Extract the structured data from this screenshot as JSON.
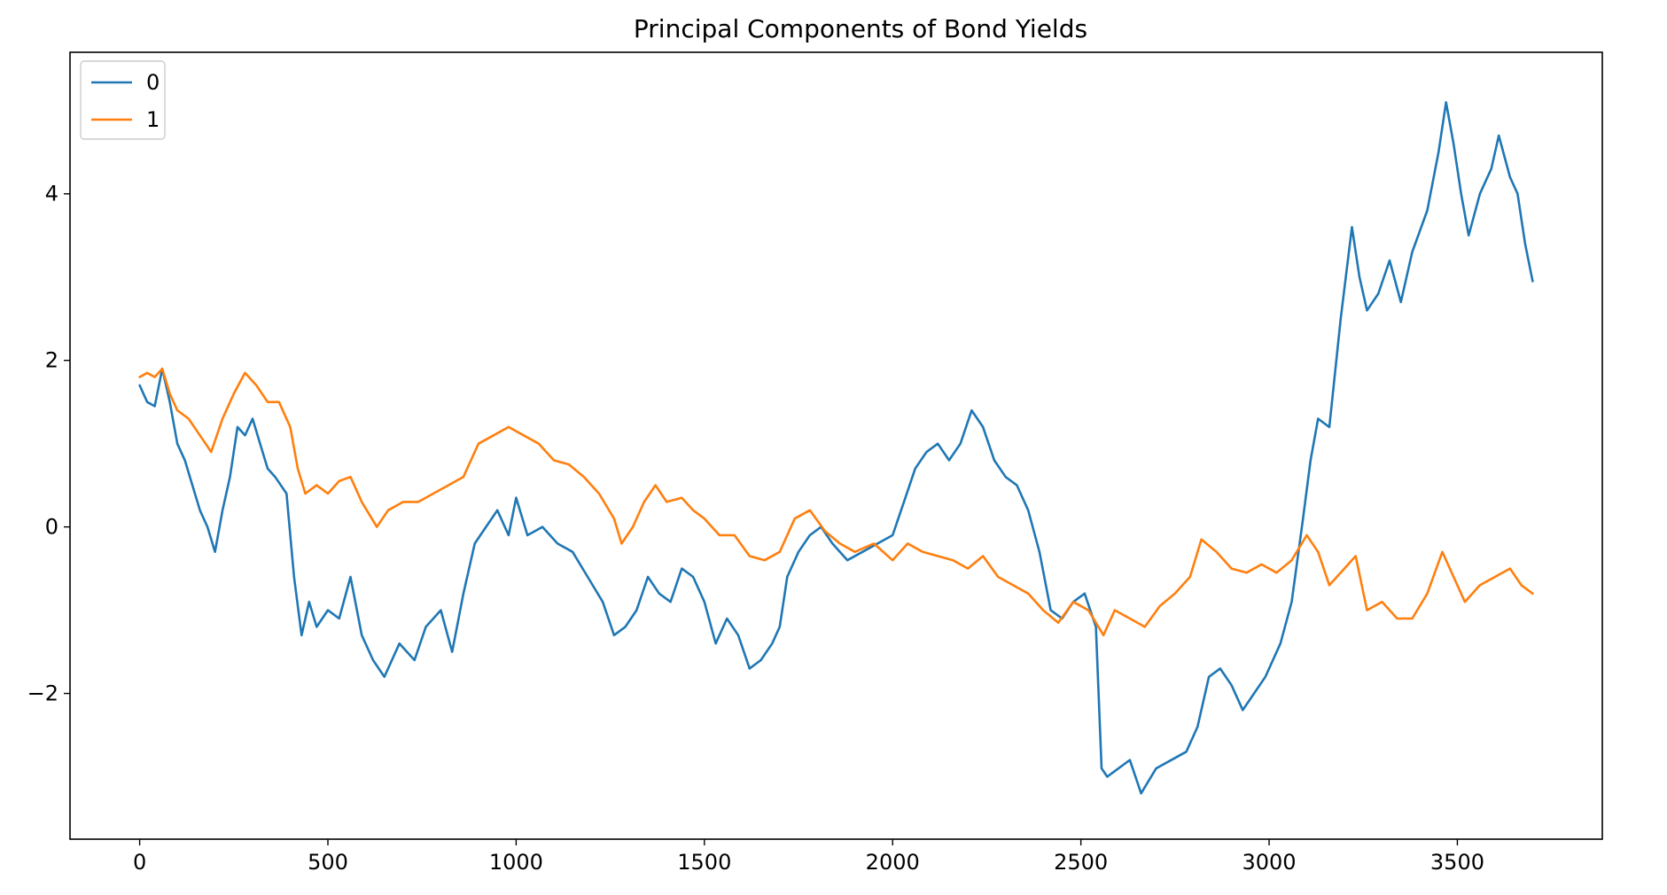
{
  "chart_data": {
    "type": "line",
    "title": "Principal Components of Bond Yields",
    "xlabel": "",
    "ylabel": "",
    "xlim": [
      -185,
      3885
    ],
    "ylim": [
      -3.75,
      5.7
    ],
    "x_ticks": [
      0,
      500,
      1000,
      1500,
      2000,
      2500,
      3000,
      3500
    ],
    "y_ticks": [
      -2,
      0,
      2,
      4
    ],
    "x_tick_labels": [
      "0",
      "500",
      "1000",
      "1500",
      "2000",
      "2500",
      "3000",
      "3500"
    ],
    "y_tick_labels": [
      "−2",
      "0",
      "2",
      "4"
    ],
    "legend": {
      "placement": "top-left",
      "entries": [
        "0",
        "1"
      ]
    },
    "grid": false,
    "series": [
      {
        "name": "0",
        "color": "#1f77b4",
        "points": [
          [
            0,
            1.7
          ],
          [
            20,
            1.5
          ],
          [
            40,
            1.45
          ],
          [
            60,
            1.9
          ],
          [
            80,
            1.5
          ],
          [
            100,
            1.0
          ],
          [
            120,
            0.8
          ],
          [
            140,
            0.5
          ],
          [
            160,
            0.2
          ],
          [
            180,
            0.0
          ],
          [
            200,
            -0.3
          ],
          [
            220,
            0.2
          ],
          [
            240,
            0.6
          ],
          [
            260,
            1.2
          ],
          [
            280,
            1.1
          ],
          [
            300,
            1.3
          ],
          [
            320,
            1.0
          ],
          [
            340,
            0.7
          ],
          [
            360,
            0.6
          ],
          [
            390,
            0.4
          ],
          [
            410,
            -0.6
          ],
          [
            430,
            -1.3
          ],
          [
            450,
            -0.9
          ],
          [
            470,
            -1.2
          ],
          [
            500,
            -1.0
          ],
          [
            530,
            -1.1
          ],
          [
            560,
            -0.6
          ],
          [
            590,
            -1.3
          ],
          [
            620,
            -1.6
          ],
          [
            650,
            -1.8
          ],
          [
            690,
            -1.4
          ],
          [
            730,
            -1.6
          ],
          [
            760,
            -1.2
          ],
          [
            800,
            -1.0
          ],
          [
            830,
            -1.5
          ],
          [
            860,
            -0.8
          ],
          [
            890,
            -0.2
          ],
          [
            920,
            0.0
          ],
          [
            950,
            0.2
          ],
          [
            980,
            -0.1
          ],
          [
            1000,
            0.35
          ],
          [
            1030,
            -0.1
          ],
          [
            1070,
            0.0
          ],
          [
            1110,
            -0.2
          ],
          [
            1150,
            -0.3
          ],
          [
            1190,
            -0.6
          ],
          [
            1230,
            -0.9
          ],
          [
            1260,
            -1.3
          ],
          [
            1290,
            -1.2
          ],
          [
            1320,
            -1.0
          ],
          [
            1350,
            -0.6
          ],
          [
            1380,
            -0.8
          ],
          [
            1410,
            -0.9
          ],
          [
            1440,
            -0.5
          ],
          [
            1470,
            -0.6
          ],
          [
            1500,
            -0.9
          ],
          [
            1530,
            -1.4
          ],
          [
            1560,
            -1.1
          ],
          [
            1590,
            -1.3
          ],
          [
            1620,
            -1.7
          ],
          [
            1650,
            -1.6
          ],
          [
            1680,
            -1.4
          ],
          [
            1700,
            -1.2
          ],
          [
            1720,
            -0.6
          ],
          [
            1750,
            -0.3
          ],
          [
            1780,
            -0.1
          ],
          [
            1810,
            0.0
          ],
          [
            1840,
            -0.2
          ],
          [
            1880,
            -0.4
          ],
          [
            1920,
            -0.3
          ],
          [
            1960,
            -0.2
          ],
          [
            2000,
            -0.1
          ],
          [
            2030,
            0.3
          ],
          [
            2060,
            0.7
          ],
          [
            2090,
            0.9
          ],
          [
            2120,
            1.0
          ],
          [
            2150,
            0.8
          ],
          [
            2180,
            1.0
          ],
          [
            2210,
            1.4
          ],
          [
            2240,
            1.2
          ],
          [
            2270,
            0.8
          ],
          [
            2300,
            0.6
          ],
          [
            2330,
            0.5
          ],
          [
            2360,
            0.2
          ],
          [
            2390,
            -0.3
          ],
          [
            2420,
            -1.0
          ],
          [
            2450,
            -1.1
          ],
          [
            2480,
            -0.9
          ],
          [
            2510,
            -0.8
          ],
          [
            2540,
            -1.2
          ],
          [
            2555,
            -2.9
          ],
          [
            2570,
            -3.0
          ],
          [
            2600,
            -2.9
          ],
          [
            2630,
            -2.8
          ],
          [
            2660,
            -3.2
          ],
          [
            2700,
            -2.9
          ],
          [
            2740,
            -2.8
          ],
          [
            2780,
            -2.7
          ],
          [
            2810,
            -2.4
          ],
          [
            2840,
            -1.8
          ],
          [
            2870,
            -1.7
          ],
          [
            2900,
            -1.9
          ],
          [
            2930,
            -2.2
          ],
          [
            2960,
            -2.0
          ],
          [
            2990,
            -1.8
          ],
          [
            3030,
            -1.4
          ],
          [
            3060,
            -0.9
          ],
          [
            3090,
            0.1
          ],
          [
            3110,
            0.8
          ],
          [
            3130,
            1.3
          ],
          [
            3160,
            1.2
          ],
          [
            3190,
            2.5
          ],
          [
            3220,
            3.6
          ],
          [
            3240,
            3.0
          ],
          [
            3260,
            2.6
          ],
          [
            3290,
            2.8
          ],
          [
            3320,
            3.2
          ],
          [
            3350,
            2.7
          ],
          [
            3380,
            3.3
          ],
          [
            3420,
            3.8
          ],
          [
            3450,
            4.5
          ],
          [
            3470,
            5.1
          ],
          [
            3490,
            4.6
          ],
          [
            3510,
            4.0
          ],
          [
            3530,
            3.5
          ],
          [
            3560,
            4.0
          ],
          [
            3590,
            4.3
          ],
          [
            3610,
            4.7
          ],
          [
            3640,
            4.2
          ],
          [
            3660,
            4.0
          ],
          [
            3680,
            3.4
          ],
          [
            3700,
            2.95
          ]
        ]
      },
      {
        "name": "1",
        "color": "#ff7f0e",
        "points": [
          [
            0,
            1.8
          ],
          [
            20,
            1.85
          ],
          [
            40,
            1.8
          ],
          [
            60,
            1.9
          ],
          [
            80,
            1.6
          ],
          [
            100,
            1.4
          ],
          [
            130,
            1.3
          ],
          [
            160,
            1.1
          ],
          [
            190,
            0.9
          ],
          [
            220,
            1.3
          ],
          [
            250,
            1.6
          ],
          [
            280,
            1.85
          ],
          [
            310,
            1.7
          ],
          [
            340,
            1.5
          ],
          [
            370,
            1.5
          ],
          [
            400,
            1.2
          ],
          [
            420,
            0.7
          ],
          [
            440,
            0.4
          ],
          [
            470,
            0.5
          ],
          [
            500,
            0.4
          ],
          [
            530,
            0.55
          ],
          [
            560,
            0.6
          ],
          [
            590,
            0.3
          ],
          [
            630,
            0.0
          ],
          [
            660,
            0.2
          ],
          [
            700,
            0.3
          ],
          [
            740,
            0.3
          ],
          [
            780,
            0.4
          ],
          [
            820,
            0.5
          ],
          [
            860,
            0.6
          ],
          [
            900,
            1.0
          ],
          [
            940,
            1.1
          ],
          [
            980,
            1.2
          ],
          [
            1020,
            1.1
          ],
          [
            1060,
            1.0
          ],
          [
            1100,
            0.8
          ],
          [
            1140,
            0.75
          ],
          [
            1180,
            0.6
          ],
          [
            1220,
            0.4
          ],
          [
            1260,
            0.1
          ],
          [
            1280,
            -0.2
          ],
          [
            1310,
            0.0
          ],
          [
            1340,
            0.3
          ],
          [
            1370,
            0.5
          ],
          [
            1400,
            0.3
          ],
          [
            1440,
            0.35
          ],
          [
            1470,
            0.2
          ],
          [
            1500,
            0.1
          ],
          [
            1540,
            -0.1
          ],
          [
            1580,
            -0.1
          ],
          [
            1620,
            -0.35
          ],
          [
            1660,
            -0.4
          ],
          [
            1700,
            -0.3
          ],
          [
            1740,
            0.1
          ],
          [
            1780,
            0.2
          ],
          [
            1820,
            -0.05
          ],
          [
            1860,
            -0.2
          ],
          [
            1900,
            -0.3
          ],
          [
            1950,
            -0.2
          ],
          [
            2000,
            -0.4
          ],
          [
            2040,
            -0.2
          ],
          [
            2080,
            -0.3
          ],
          [
            2120,
            -0.35
          ],
          [
            2160,
            -0.4
          ],
          [
            2200,
            -0.5
          ],
          [
            2240,
            -0.35
          ],
          [
            2280,
            -0.6
          ],
          [
            2320,
            -0.7
          ],
          [
            2360,
            -0.8
          ],
          [
            2400,
            -1.0
          ],
          [
            2440,
            -1.15
          ],
          [
            2480,
            -0.9
          ],
          [
            2520,
            -1.0
          ],
          [
            2560,
            -1.3
          ],
          [
            2590,
            -1.0
          ],
          [
            2630,
            -1.1
          ],
          [
            2670,
            -1.2
          ],
          [
            2710,
            -0.95
          ],
          [
            2750,
            -0.8
          ],
          [
            2790,
            -0.6
          ],
          [
            2820,
            -0.15
          ],
          [
            2860,
            -0.3
          ],
          [
            2900,
            -0.5
          ],
          [
            2940,
            -0.55
          ],
          [
            2980,
            -0.45
          ],
          [
            3020,
            -0.55
          ],
          [
            3060,
            -0.4
          ],
          [
            3100,
            -0.1
          ],
          [
            3130,
            -0.3
          ],
          [
            3160,
            -0.7
          ],
          [
            3200,
            -0.5
          ],
          [
            3230,
            -0.35
          ],
          [
            3260,
            -1.0
          ],
          [
            3300,
            -0.9
          ],
          [
            3340,
            -1.1
          ],
          [
            3380,
            -1.1
          ],
          [
            3420,
            -0.8
          ],
          [
            3460,
            -0.3
          ],
          [
            3490,
            -0.6
          ],
          [
            3520,
            -0.9
          ],
          [
            3560,
            -0.7
          ],
          [
            3600,
            -0.6
          ],
          [
            3640,
            -0.5
          ],
          [
            3670,
            -0.7
          ],
          [
            3700,
            -0.8
          ]
        ]
      }
    ]
  }
}
